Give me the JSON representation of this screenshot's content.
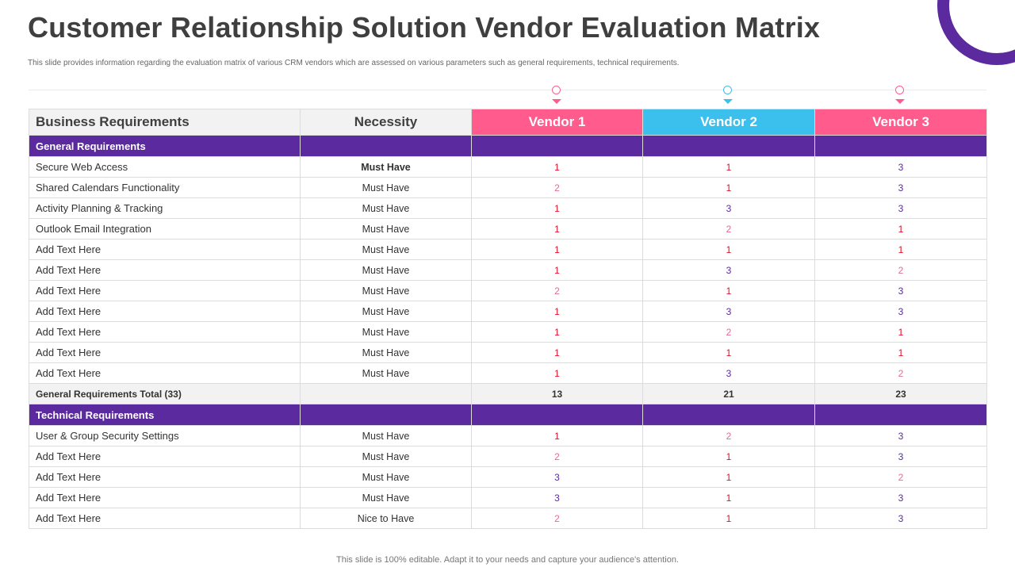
{
  "title": "Customer Relationship Solution Vendor Evaluation Matrix",
  "subtitle": "This slide provides information regarding the evaluation matrix of various CRM vendors which are assessed on various parameters such as general requirements, technical requirements.",
  "footer": "This slide is 100% editable. Adapt it to your needs and capture your audience's attention.",
  "colors": {
    "purple": "#5b2a9e",
    "pink": "#ff5c8d",
    "blue": "#3bbfec",
    "score_1": "#e0102a",
    "score_2": "#e66a9a",
    "score_3": "#5b2a9e"
  },
  "table": {
    "headers": {
      "requirement": "Business Requirements",
      "necessity": "Necessity",
      "vendors": [
        {
          "label": "Vendor 1",
          "color": "#ff5c8d",
          "icon": "circle-marker-icon"
        },
        {
          "label": "Vendor 2",
          "color": "#3bbfec",
          "icon": "circle-marker-icon"
        },
        {
          "label": "Vendor 3",
          "color": "#ff5c8d",
          "icon": "circle-marker-icon"
        }
      ]
    },
    "sections": [
      {
        "name": "General Requirements",
        "rows": [
          {
            "requirement": "Secure Web Access",
            "necessity": "Must Have",
            "bold": true,
            "scores": [
              1,
              1,
              3
            ]
          },
          {
            "requirement": "Shared Calendars Functionality",
            "necessity": "Must Have",
            "scores": [
              2,
              1,
              3
            ]
          },
          {
            "requirement": "Activity Planning & Tracking",
            "necessity": "Must Have",
            "scores": [
              1,
              3,
              3
            ]
          },
          {
            "requirement": "Outlook Email Integration",
            "necessity": "Must Have",
            "scores": [
              1,
              2,
              1
            ]
          },
          {
            "requirement": "Add Text Here",
            "necessity": "Must Have",
            "scores": [
              1,
              1,
              1
            ]
          },
          {
            "requirement": "Add Text Here",
            "necessity": "Must Have",
            "scores": [
              1,
              3,
              2
            ]
          },
          {
            "requirement": "Add Text Here",
            "necessity": "Must Have",
            "scores": [
              2,
              1,
              3
            ]
          },
          {
            "requirement": "Add Text Here",
            "necessity": "Must Have",
            "scores": [
              1,
              3,
              3
            ]
          },
          {
            "requirement": "Add Text Here",
            "necessity": "Must Have",
            "scores": [
              1,
              2,
              1
            ]
          },
          {
            "requirement": "Add Text Here",
            "necessity": "Must Have",
            "scores": [
              1,
              1,
              1
            ]
          },
          {
            "requirement": "Add Text Here",
            "necessity": "Must Have",
            "scores": [
              1,
              3,
              2
            ]
          }
        ],
        "total": {
          "label": "General Requirements Total (33)",
          "values": [
            13,
            21,
            23
          ]
        }
      },
      {
        "name": "Technical Requirements",
        "rows": [
          {
            "requirement": "User & Group Security Settings",
            "necessity": "Must Have",
            "scores": [
              1,
              2,
              3
            ]
          },
          {
            "requirement": "Add Text Here",
            "necessity": "Must Have",
            "scores": [
              2,
              1,
              3
            ]
          },
          {
            "requirement": "Add Text Here",
            "necessity": "Must Have",
            "scores": [
              3,
              1,
              2
            ]
          },
          {
            "requirement": "Add Text Here",
            "necessity": "Must Have",
            "scores": [
              3,
              1,
              3
            ]
          },
          {
            "requirement": "Add Text Here",
            "necessity": "Nice to Have",
            "scores": [
              2,
              1,
              3
            ]
          }
        ]
      }
    ]
  }
}
